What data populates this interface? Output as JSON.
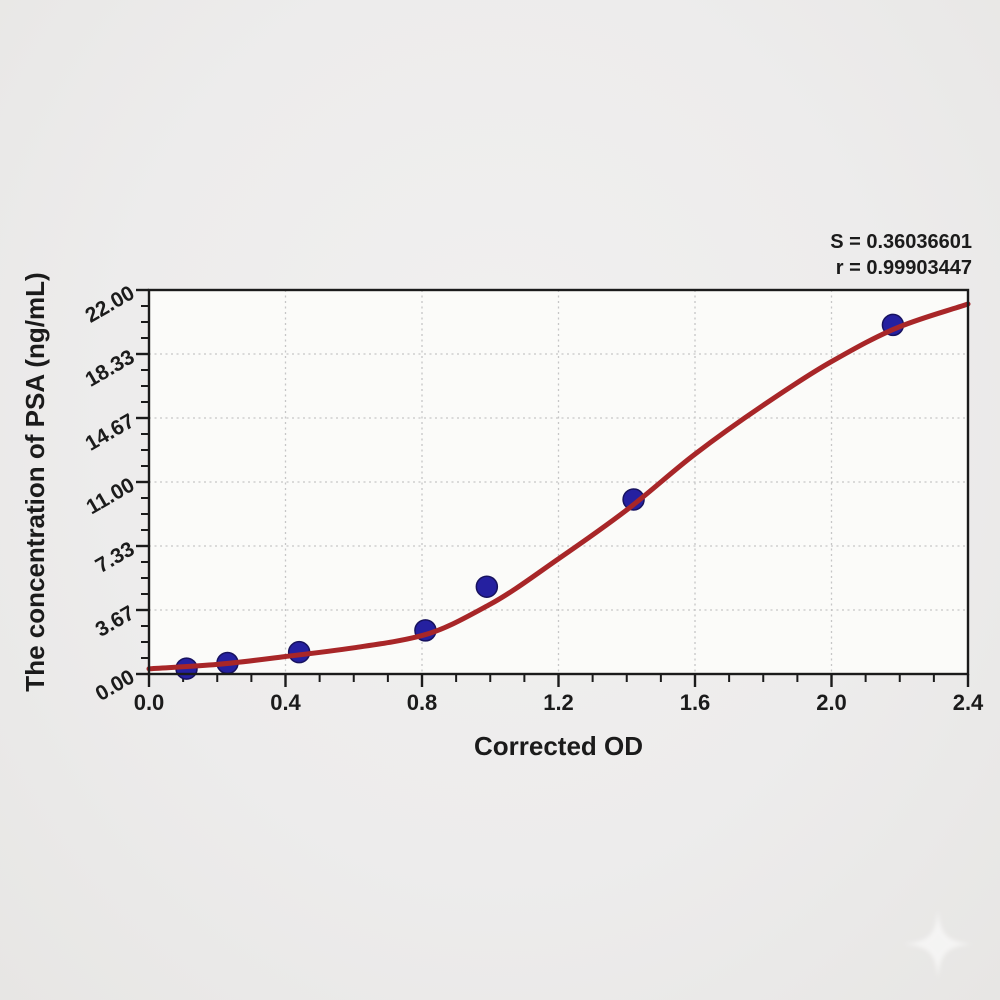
{
  "page": {
    "background_color": "#edecea"
  },
  "watermark": {
    "icon": "sparkle-star",
    "color": "#ffffff"
  },
  "chart_data": {
    "type": "scatter",
    "title": "",
    "xlabel": "Corrected OD",
    "ylabel": "The concentration of PSA (ng/mL)",
    "xlim": [
      0,
      2.4
    ],
    "ylim": [
      0,
      22
    ],
    "x_tick_labels": [
      "0.0",
      "0.4",
      "0.8",
      "1.2",
      "1.6",
      "2.0",
      "2.4"
    ],
    "x_major_step": 0.4,
    "x_minor_per_major": 4,
    "y_tick_labels": [
      "0.00",
      "3.67",
      "7.33",
      "11.00",
      "14.67",
      "18.33",
      "22.00"
    ],
    "y_major_step": 3.6666667,
    "y_minor_per_major": 4,
    "grid": {
      "style": "dotted",
      "at_major_ticks": true
    },
    "legend": null,
    "points": [
      {
        "od": 0.11,
        "conc": 0.31
      },
      {
        "od": 0.23,
        "conc": 0.63
      },
      {
        "od": 0.44,
        "conc": 1.25
      },
      {
        "od": 0.81,
        "conc": 2.5
      },
      {
        "od": 0.99,
        "conc": 5.0
      },
      {
        "od": 1.42,
        "conc": 10.0
      },
      {
        "od": 2.18,
        "conc": 20.0
      }
    ],
    "curve": [
      [
        0.0,
        0.3
      ],
      [
        0.2,
        0.55
      ],
      [
        0.4,
        1.0
      ],
      [
        0.6,
        1.5
      ],
      [
        0.8,
        2.2
      ],
      [
        1.0,
        4.0
      ],
      [
        1.2,
        6.6
      ],
      [
        1.4,
        9.4
      ],
      [
        1.6,
        12.6
      ],
      [
        1.8,
        15.4
      ],
      [
        2.0,
        17.9
      ],
      [
        2.2,
        19.9
      ],
      [
        2.4,
        21.2
      ]
    ],
    "annotation_lines": [
      "S = 0.36036601",
      "r = 0.99903447"
    ],
    "S": "0.36036601",
    "r": "0.99903447",
    "colors": {
      "curve": "#a82628",
      "point_fill": "#2520a0",
      "point_edge": "#17125f",
      "axis": "#1b1b1b",
      "grid": "#c6c6c6",
      "plot_bg": "#fbfbf9",
      "text": "#1b1b1b"
    }
  }
}
